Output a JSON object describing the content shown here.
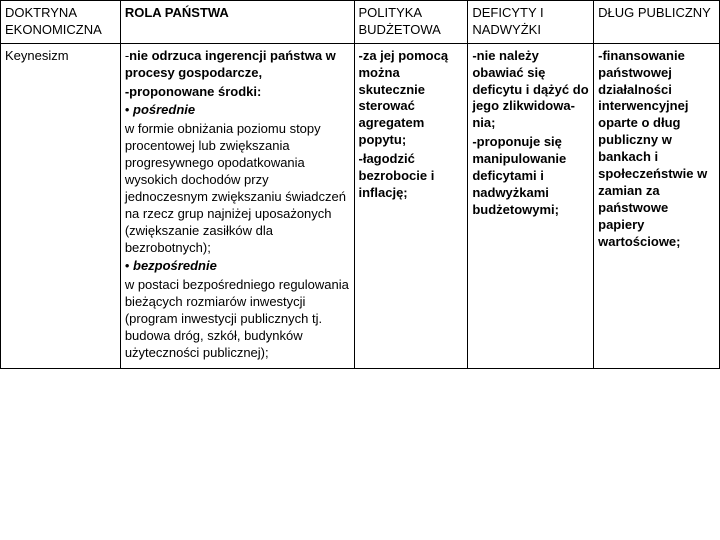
{
  "header": {
    "col0": "DOKTRYNA EKONOMICZNA",
    "col1": "ROLA PAŃSTWA",
    "col2": "POLITYKA BUDŻETOWA",
    "col3": "DEFICYTY I NADWYŻKI",
    "col4": "DŁUG PUBLICZNY"
  },
  "row": {
    "doktryna": "Keynesizm",
    "rola_l1a": "-",
    "rola_l1b": "nie odrzuca ingerencji państwa w procesy gospodarcze,",
    "rola_l2": "-proponowane środki:",
    "rola_bullet1": "• ",
    "rola_b1": "pośrednie",
    "rola_p1": "w  formie obniżania poziomu stopy procentowej lub zwiększania progresywnego opodatkowania wysokich dochodów przy jednoczesnym zwiększaniu świadczeń na rzecz grup najniżej uposażonych (zwiększanie zasiłków dla bezrobotnych);",
    "rola_bullet2": "• ",
    "rola_b2": "bezpośrednie",
    "rola_p2": "w postaci bezpośredniego regulowania bieżących rozmiarów inwestycji (program inwestycji publicznych tj. budowa dróg, szkół, budynków użyteczności publicznej);",
    "polityka": "-za jej pomocą można skutecznie sterować agregatem popytu;",
    "polityka2": "-łagodzić bezrobocie i inflację;",
    "deficyty": "-nie należy obawiać się deficytu i dążyć do jego zlikwidowa­nia;",
    "deficyty2": "-proponuje się manipulowanie deficytami i nadwyżkami budżetowymi;",
    "dlug": "-finansowanie państwowej działalności interwencyj­nej oparte o dług publiczny w bankach i społeczeń­stwie w zamian za państwowe papiery wartościowe;"
  }
}
